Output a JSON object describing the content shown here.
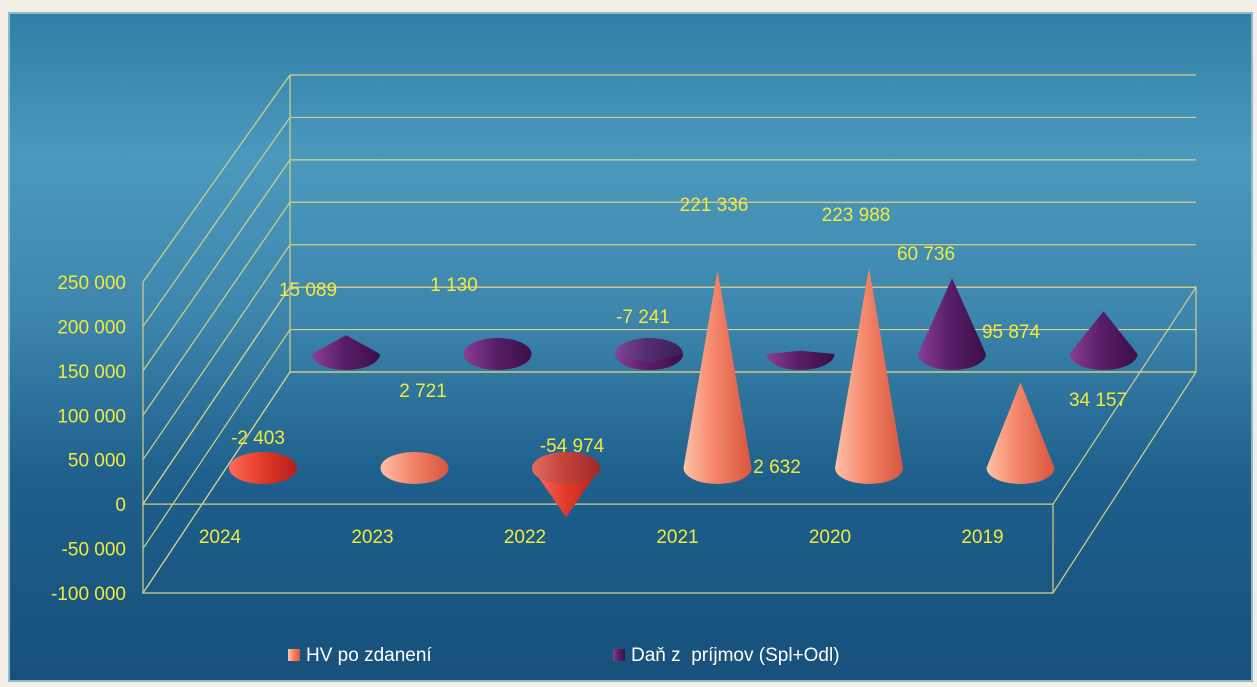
{
  "chart_data": {
    "type": "bar",
    "bar_shape": "cone",
    "view": "3d",
    "categories": [
      "2024",
      "2023",
      "2022",
      "2021",
      "2020",
      "2019"
    ],
    "series": [
      {
        "name": "HV po zdanení",
        "color": "#f08a6c",
        "values": [
          -2403,
          2721,
          -54974,
          221336,
          223988,
          95874
        ],
        "labels": [
          "-2 403",
          "2 721",
          "-54 974",
          "221 336",
          "223 988",
          "95 874"
        ]
      },
      {
        "name": "Daň z  príjmov (Spl+Odl)",
        "color": "#5b1f63",
        "values": [
          15089,
          1130,
          -7241,
          2632,
          60736,
          34157
        ],
        "labels": [
          "15 089",
          "1 130",
          "-7 241",
          "2 632",
          "60 736",
          "34 157"
        ]
      }
    ],
    "yticks": [
      "250 000",
      "200 000",
      "150 000",
      "100 000",
      "50 000",
      "0",
      "-50 000",
      "-100 000"
    ],
    "ylim": [
      -100000,
      250000
    ],
    "grid": true,
    "legend": "bottom",
    "label_color": "#f2ea3a"
  }
}
